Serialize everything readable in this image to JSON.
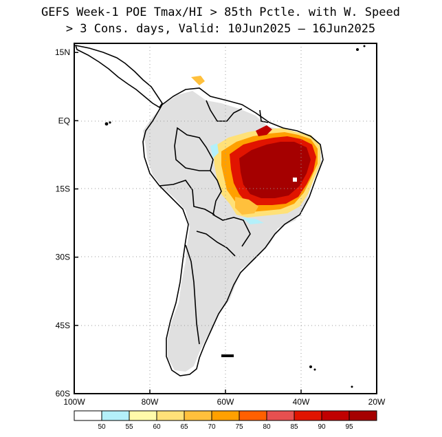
{
  "title": {
    "line1": "GEFS Week-1 POE Tmax/HI > 85th Pctle. with W. Speed",
    "line2": "> 3 Cons. days, Valid: 10Jun2025 – 16Jun2025"
  },
  "map": {
    "lon_range": [
      -100,
      -20
    ],
    "lat_range": [
      -60,
      17
    ],
    "y_ticks": [
      {
        "lat": 15,
        "label": "15N"
      },
      {
        "lat": 0,
        "label": "EQ"
      },
      {
        "lat": -15,
        "label": "15S"
      },
      {
        "lat": -30,
        "label": "30S"
      },
      {
        "lat": -45,
        "label": "45S"
      },
      {
        "lat": -60,
        "label": "60S"
      }
    ],
    "x_ticks": [
      {
        "lon": -100,
        "label": "100W"
      },
      {
        "lon": -80,
        "label": "80W"
      },
      {
        "lon": -60,
        "label": "60W"
      },
      {
        "lon": -40,
        "label": "40W"
      },
      {
        "lon": -20,
        "label": "20W"
      }
    ],
    "colors": {
      "land_below_threshold": "#e0e0e0",
      "coastline": "#000000"
    }
  },
  "colorbar": {
    "labels": [
      "50",
      "55",
      "60",
      "65",
      "70",
      "75",
      "80",
      "85",
      "90",
      "95"
    ],
    "colors": [
      "#ffffff",
      "#b4f0fa",
      "#fffaaa",
      "#ffe178",
      "#ffc03c",
      "#ffa000",
      "#ff6000",
      "#e65050",
      "#e11400",
      "#c00000",
      "#a50000"
    ]
  }
}
